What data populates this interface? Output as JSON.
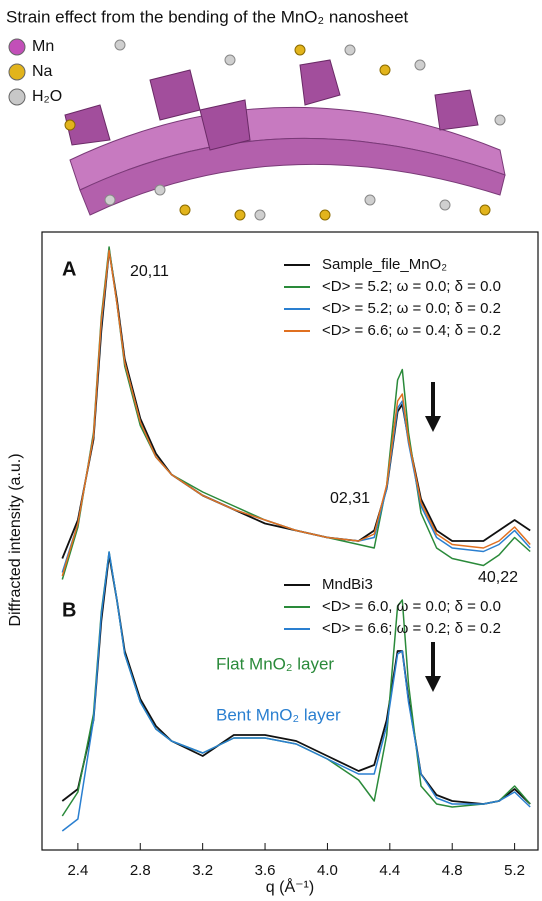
{
  "illustration": {
    "title": "Strain effect from the bending of the MnO₂ nanosheet",
    "legend": [
      {
        "label": "Mn",
        "color": "#c24fb8"
      },
      {
        "label": "Na",
        "color": "#e2b41c"
      },
      {
        "label": "H₂O",
        "color": "#c8c8c8"
      }
    ]
  },
  "chart_data": {
    "type": "line",
    "xlabel": "q (Å⁻¹)",
    "ylabel": "Diffracted intensity (a.u.)",
    "xlim": [
      2.17,
      5.35
    ],
    "xticks": [
      2.4,
      2.8,
      3.2,
      3.6,
      {
        "value": 4,
        "label": "4.0"
      },
      4.4,
      4.8,
      5.2
    ],
    "panels": [
      {
        "label": "A",
        "ylim": [
          0,
          100
        ],
        "x": [
          2.3,
          2.4,
          2.5,
          2.55,
          2.6,
          2.65,
          2.7,
          2.8,
          2.9,
          3.0,
          3.2,
          3.4,
          3.6,
          3.8,
          4.0,
          4.2,
          4.3,
          4.38,
          4.45,
          4.48,
          4.52,
          4.6,
          4.7,
          4.8,
          5.0,
          5.1,
          5.2,
          5.3
        ],
        "series": [
          {
            "name": "Sample_file_MnO₂",
            "color": "#111111",
            "values": [
              9,
              20,
              43,
              74,
              97,
              83,
              66,
              49,
              39,
              33,
              27,
              23,
              19,
              17,
              15,
              14,
              17,
              29,
              51,
              53,
              43,
              26,
              17,
              14,
              14,
              17,
              20,
              17
            ]
          },
          {
            "name": "<D> = 5.2; ω = 0.0; δ = 0.0",
            "color": "#2a8a3a",
            "values": [
              3,
              18,
              45,
              78,
              98,
              82,
              64,
              47,
              38,
              33,
              28,
              24,
              20,
              17,
              15,
              13,
              12,
              30,
              60,
              63,
              45,
              22,
              12,
              9,
              7,
              10,
              15,
              11
            ]
          },
          {
            "name": "<D> = 5.2; ω = 0.0; δ = 0.2",
            "color": "#2a7fd0",
            "values": [
              5,
              19,
              44,
              76,
              97,
              82,
              65,
              48,
              38,
              33,
              27,
              23,
              20,
              17,
              15,
              14,
              15,
              29,
              52,
              54,
              42,
              24,
              15,
              12,
              11,
              13,
              17,
              12
            ]
          },
          {
            "name": "<D> = 6.6; ω = 0.4; δ = 0.2",
            "color": "#e07020",
            "values": [
              4,
              19,
              44,
              77,
              97,
              82,
              65,
              48,
              38,
              33,
              27,
              23,
              20,
              17,
              15,
              14,
              16,
              30,
              54,
              56,
              43,
              25,
              16,
              13,
              12,
              14,
              18,
              13
            ]
          }
        ],
        "annotations": [
          "20,11",
          "02,31",
          "40,22"
        ]
      },
      {
        "label": "B",
        "ylim": [
          0,
          100
        ],
        "x": [
          2.3,
          2.4,
          2.5,
          2.55,
          2.6,
          2.65,
          2.7,
          2.8,
          2.9,
          3.0,
          3.2,
          3.4,
          3.6,
          3.8,
          4.0,
          4.2,
          4.3,
          4.38,
          4.45,
          4.48,
          4.52,
          4.6,
          4.7,
          4.8,
          5.0,
          5.1,
          5.2,
          5.3
        ],
        "series": [
          {
            "name": "MndBi3",
            "color": "#111111",
            "values": [
              13,
              17,
              40,
              73,
              95,
              80,
              63,
              47,
              38,
              33,
              28,
              35,
              35,
              33,
              28,
              23,
              25,
              40,
              63,
              63,
              47,
              22,
              15,
              13,
              12,
              13,
              17,
              12
            ]
          },
          {
            "name": "<D> = 6.0, ω = 0.0; δ = 0.0",
            "color": "#2a8a3a",
            "values": [
              8,
              16,
              42,
              76,
              96,
              80,
              62,
              46,
              37,
              33,
              29,
              34,
              34,
              32,
              27,
              20,
              13,
              35,
              78,
              80,
              52,
              18,
              12,
              11,
              12,
              13,
              18,
              12
            ]
          },
          {
            "name": "<D> = 6.6; ω = 0.2; δ = 0.2",
            "color": "#2a7fd0",
            "values": [
              3,
              7,
              40,
              75,
              96,
              80,
              62,
              46,
              37,
              33,
              29,
              34,
              34,
              32,
              27,
              22,
              22,
              38,
              62,
              63,
              46,
              22,
              14,
              12,
              12,
              13,
              16,
              11
            ]
          }
        ],
        "annotations": [
          "Flat MnO₂ layer",
          "Bent MnO₂ layer"
        ]
      }
    ]
  }
}
